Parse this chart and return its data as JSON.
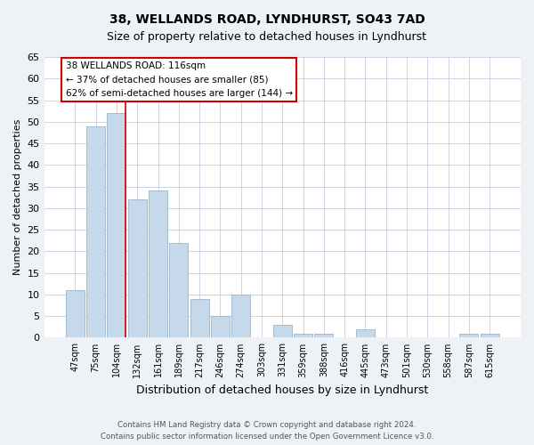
{
  "title": "38, WELLANDS ROAD, LYNDHURST, SO43 7AD",
  "subtitle": "Size of property relative to detached houses in Lyndhurst",
  "xlabel": "Distribution of detached houses by size in Lyndhurst",
  "ylabel": "Number of detached properties",
  "bar_labels": [
    "47sqm",
    "75sqm",
    "104sqm",
    "132sqm",
    "161sqm",
    "189sqm",
    "217sqm",
    "246sqm",
    "274sqm",
    "303sqm",
    "331sqm",
    "359sqm",
    "388sqm",
    "416sqm",
    "445sqm",
    "473sqm",
    "501sqm",
    "530sqm",
    "558sqm",
    "587sqm",
    "615sqm"
  ],
  "bar_values": [
    11,
    49,
    52,
    32,
    34,
    22,
    9,
    5,
    10,
    0,
    3,
    1,
    1,
    0,
    2,
    0,
    0,
    0,
    0,
    1,
    1
  ],
  "bar_color": "#c6d9ea",
  "bar_edge_color": "#9ab5cc",
  "vline_x_index": 2,
  "vline_color": "#cc0000",
  "ylim": [
    0,
    65
  ],
  "yticks": [
    0,
    5,
    10,
    15,
    20,
    25,
    30,
    35,
    40,
    45,
    50,
    55,
    60,
    65
  ],
  "ann_line1": "38 WELLANDS ROAD: 116sqm",
  "ann_line2": "← 37% of detached houses are smaller (85)",
  "ann_line3": "62% of semi-detached houses are larger (144) →",
  "footer_line1": "Contains HM Land Registry data © Crown copyright and database right 2024.",
  "footer_line2": "Contains public sector information licensed under the Open Government Licence v3.0.",
  "background_color": "#eef2f7",
  "plot_background_color": "#ffffff",
  "grid_color": "#c5cfe0"
}
